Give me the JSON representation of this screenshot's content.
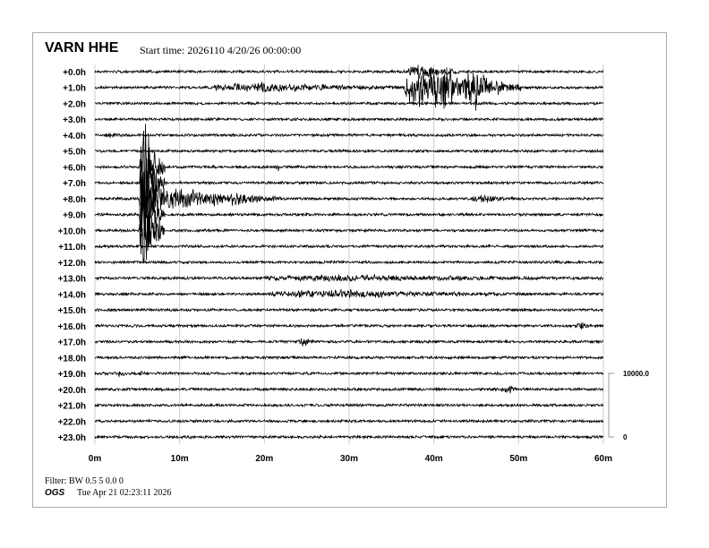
{
  "header": {
    "station": "VARN HHE",
    "start_time": "Start time: 2026110  4/20/26 00:00:00"
  },
  "footer": {
    "filter": "Filter: BW 0.5 5 0.0 0",
    "org": "OGS",
    "printed": "Tue Apr 21 02:23:11 2026"
  },
  "chart_data": {
    "type": "line",
    "title": "VARN HHE",
    "row_labels": [
      "+0.0h",
      "+1.0h",
      "+2.0h",
      "+3.0h",
      "+4.0h",
      "+5.0h",
      "+6.0h",
      "+7.0h",
      "+8.0h",
      "+9.0h",
      "+10.0h",
      "+11.0h",
      "+12.0h",
      "+13.0h",
      "+14.0h",
      "+15.0h",
      "+16.0h",
      "+17.0h",
      "+18.0h",
      "+19.0h",
      "+20.0h",
      "+21.0h",
      "+22.0h",
      "+23.0h"
    ],
    "x_ticks": [
      "0m",
      "10m",
      "20m",
      "30m",
      "40m",
      "50m",
      "60m"
    ],
    "xlim": [
      0,
      60
    ],
    "grid": true,
    "scale_bar": {
      "top_label": "10000.0",
      "bottom_label": "0",
      "counts": 10000
    },
    "line_color": "#000000",
    "grid_color": "#cccccc",
    "events": [
      {
        "row": 0,
        "minute": 38.5,
        "amplitude": 1500,
        "duration": 3
      },
      {
        "row": 1,
        "minute": 20,
        "amplitude": 800,
        "duration": 12
      },
      {
        "row": 1,
        "minute": 40,
        "amplitude": 4500,
        "duration": 7
      },
      {
        "row": 1,
        "minute": 45,
        "amplitude": 3000,
        "duration": 2
      },
      {
        "row": 4,
        "minute": 1.8,
        "amplitude": 400,
        "duration": 1
      },
      {
        "row": 6,
        "minute": 21.5,
        "amplitude": 1200,
        "duration": 0.3
      },
      {
        "row": 8,
        "minute": 6,
        "amplitude": 12000,
        "duration": 1.5
      },
      {
        "row": 8,
        "minute": 10,
        "amplitude": 2000,
        "duration": 8
      },
      {
        "row": 8,
        "minute": 16.5,
        "amplitude": 700,
        "duration": 2
      },
      {
        "row": 8,
        "minute": 46,
        "amplitude": 600,
        "duration": 3
      },
      {
        "row": 13,
        "minute": 30,
        "amplitude": 500,
        "duration": 20
      },
      {
        "row": 14,
        "minute": 28,
        "amplitude": 700,
        "duration": 15
      },
      {
        "row": 16,
        "minute": 57.5,
        "amplitude": 500,
        "duration": 1.5
      },
      {
        "row": 17,
        "minute": 24.5,
        "amplitude": 800,
        "duration": 1
      },
      {
        "row": 19,
        "minute": 3,
        "amplitude": 400,
        "duration": 0.8
      },
      {
        "row": 19,
        "minute": 5.5,
        "amplitude": 400,
        "duration": 0.5
      },
      {
        "row": 20,
        "minute": 40.5,
        "amplitude": 600,
        "duration": 0.5
      },
      {
        "row": 20,
        "minute": 49,
        "amplitude": 500,
        "duration": 2
      }
    ]
  }
}
